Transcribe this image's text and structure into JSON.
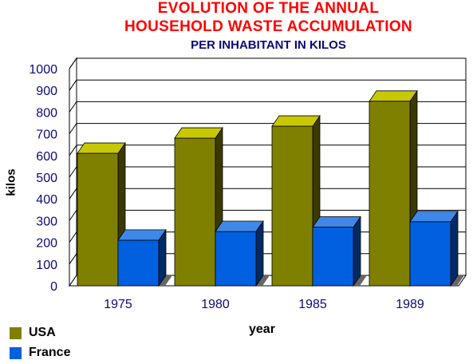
{
  "chart_data": {
    "type": "bar",
    "title": "EVOLUTION OF THE ANNUAL",
    "title_line2": "HOUSEHOLD WASTE ACCUMULATION",
    "subtitle": "PER INHABITANT IN KILOS",
    "xlabel": "year",
    "ylabel": "kilos",
    "categories": [
      "1975",
      "1980",
      "1985",
      "1989"
    ],
    "ylim": [
      0,
      1000
    ],
    "yticks": [
      0,
      100,
      200,
      300,
      400,
      500,
      600,
      700,
      800,
      900,
      1000
    ],
    "grid": true,
    "legend_position": "bottom-left",
    "series": [
      {
        "name": "USA",
        "values": [
          610,
          680,
          735,
          850
        ],
        "color": "#808000"
      },
      {
        "name": "France",
        "values": [
          210,
          250,
          270,
          295
        ],
        "color": "#0060e0"
      }
    ]
  }
}
